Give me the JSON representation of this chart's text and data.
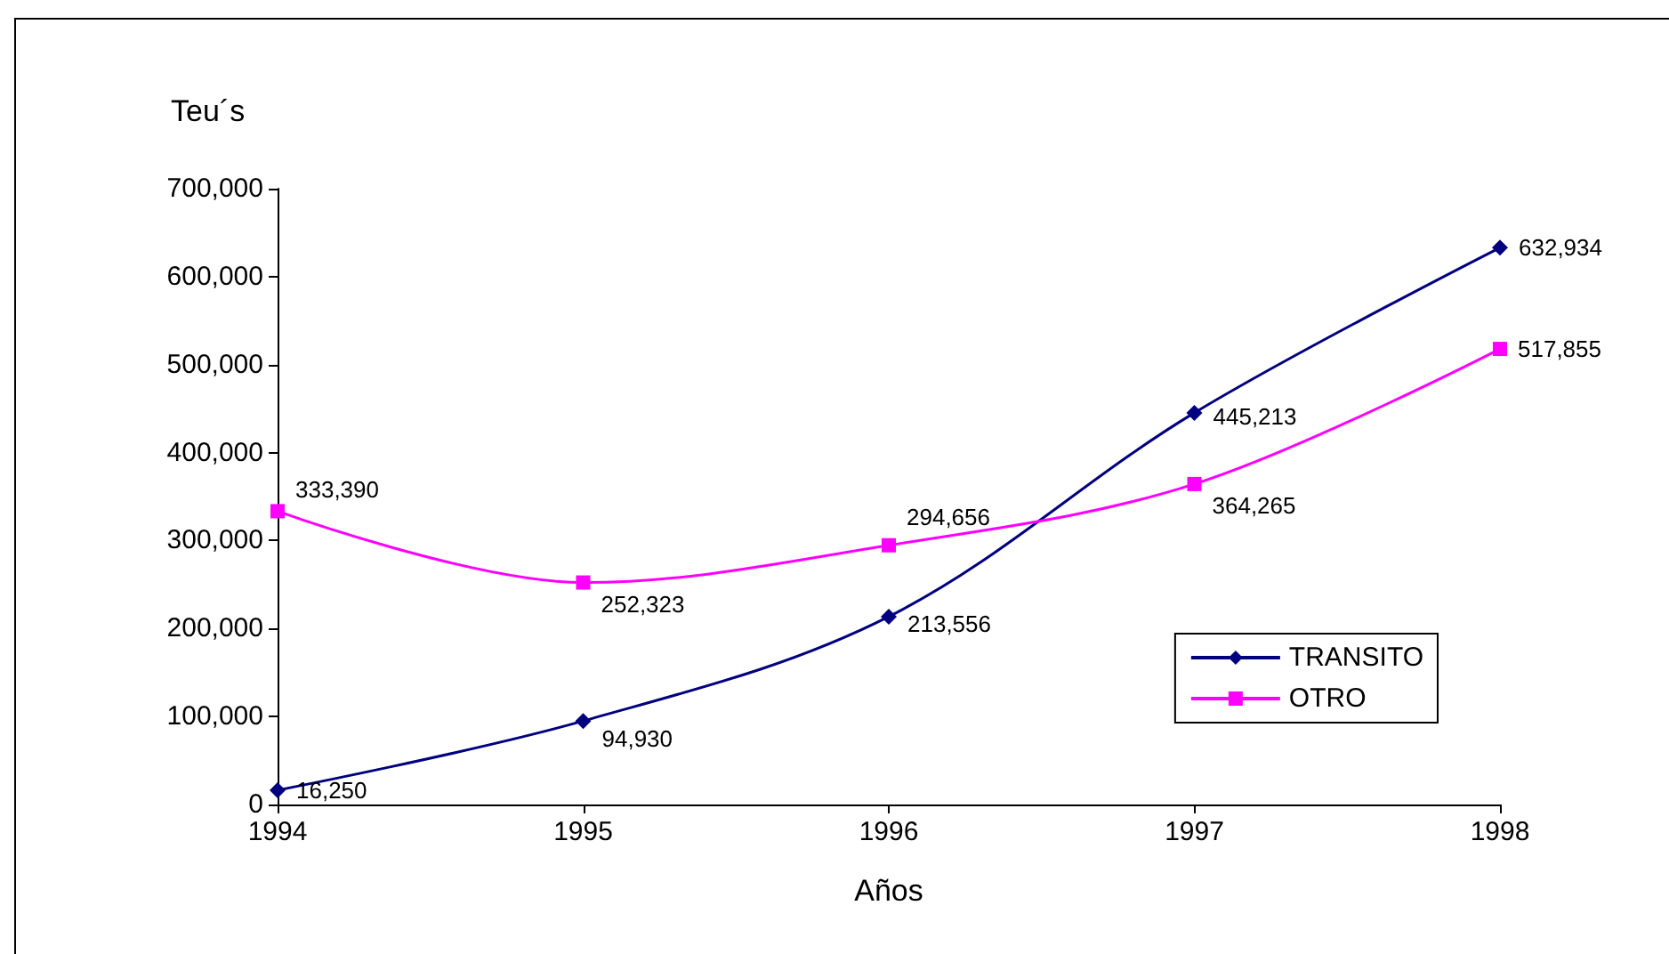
{
  "chart_data": {
    "type": "line",
    "xlabel": "Años",
    "ylabel": "Teu´s",
    "categories": [
      "1994",
      "1995",
      "1996",
      "1997",
      "1998"
    ],
    "series": [
      {
        "name": "TRANSITO",
        "color": "#000080",
        "marker": "diamond",
        "values": [
          16250,
          94930,
          213556,
          445213,
          632934
        ],
        "value_labels": [
          "16,250",
          "94,930",
          "213,556",
          "445,213",
          "632,934"
        ]
      },
      {
        "name": "OTRO",
        "color": "#ff00ff",
        "marker": "square",
        "values": [
          333390,
          252323,
          294656,
          364265,
          517855
        ],
        "value_labels": [
          "333,390",
          "252,323",
          "294,656",
          "364,265",
          "517,855"
        ]
      }
    ],
    "ylim": [
      0,
      700000
    ],
    "yticks": [
      0,
      {
        "value": 100000,
        "label": "100,000"
      },
      {
        "value": 200000,
        "label": "200,000"
      },
      {
        "value": 300000,
        "label": "300,000"
      },
      {
        "value": 400000,
        "label": "400,000"
      },
      {
        "value": 500000,
        "label": "500,000"
      },
      {
        "value": 600000,
        "label": "600,000"
      },
      {
        "value": 700000,
        "label": "700,000"
      }
    ],
    "grid": false,
    "legend": "bottom right",
    "line_style": "solid"
  }
}
